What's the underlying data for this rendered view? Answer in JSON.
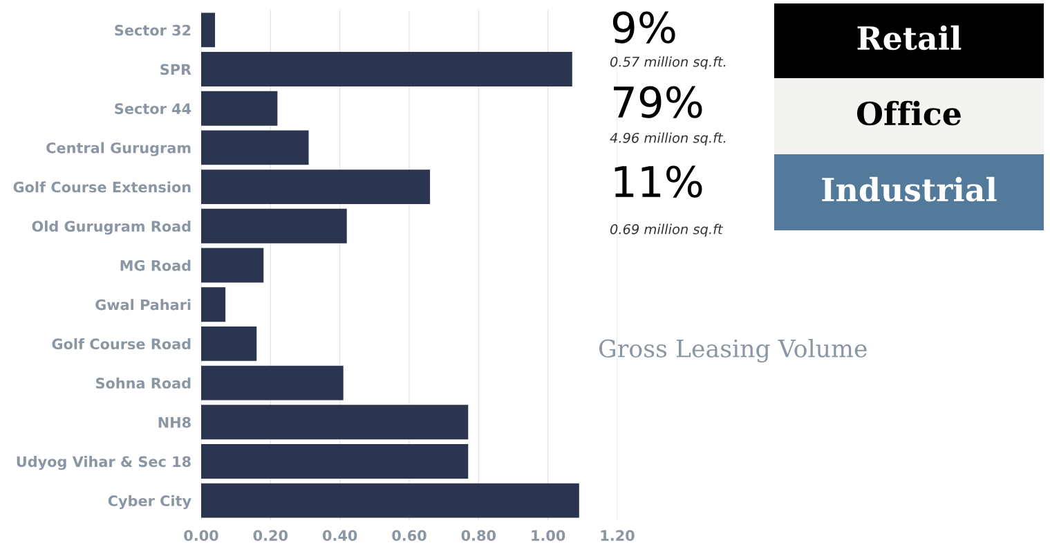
{
  "chart_data": [
    {
      "type": "bar",
      "orientation": "horizontal",
      "title": "Gross Leasing Volume",
      "categories": [
        "Sector 32",
        "SPR",
        "Sector 44",
        "Central Gurugram",
        "Golf Course Extension",
        "Old Gurugram Road",
        "MG Road",
        "Gwal Pahari",
        "Golf Course Road",
        "Sohna Road",
        "NH8",
        "Udyog Vihar & Sec 18",
        "Cyber City"
      ],
      "values": [
        0.04,
        1.07,
        0.22,
        0.31,
        0.66,
        0.42,
        0.18,
        0.07,
        0.16,
        0.41,
        0.77,
        0.77,
        1.09
      ],
      "color": "#2b3550",
      "xlim": [
        0,
        1.2
      ],
      "xticks": [
        {
          "value": 0,
          "label": "0.00"
        },
        {
          "value": 0.2,
          "label": "0.20"
        },
        {
          "value": 0.4,
          "label": "0.40"
        },
        {
          "value": 0.6,
          "label": "0.60"
        },
        {
          "value": 0.8,
          "label": "0.80"
        },
        {
          "value": 1.0,
          "label": "1.00"
        },
        {
          "value": 1.2,
          "label": "1.20"
        }
      ],
      "grid": "x"
    },
    {
      "type": "other",
      "categories": [
        "Retail",
        "Office",
        "Industrial"
      ],
      "colors": [
        "#000000",
        "#f3f4ef",
        "#537a9b"
      ],
      "value_labels": [
        "9%",
        "79%",
        "11%"
      ],
      "annotations": [
        "0.57 million sq.ft.",
        "4.96 million sq.ft.",
        "0.69 million sq.ft"
      ]
    }
  ]
}
